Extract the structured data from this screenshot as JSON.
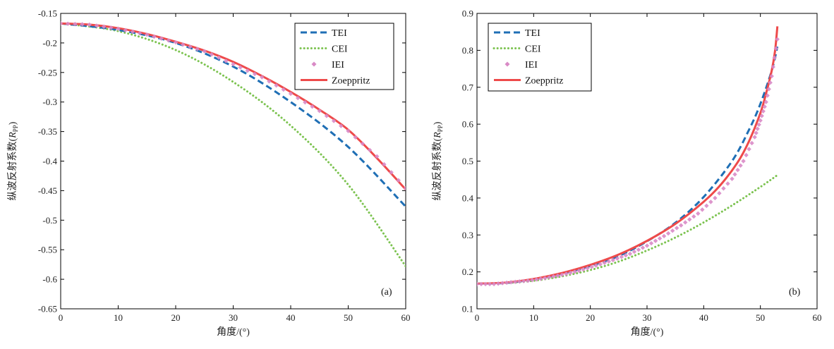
{
  "colors": {
    "TEI": "#1f6fb5",
    "CEI": "#7cc350",
    "IEI": "#d98ac6",
    "Zoeppritz": "#ee4a4a"
  },
  "chart_data": [
    {
      "type": "line",
      "panel": "(a)",
      "xlabel": "角度/(°)",
      "ylabel": "纵波反射系数(R_PP)",
      "ylabel_main": "纵波反射系数(",
      "ylabel_var": "R",
      "ylabel_sub": "PP",
      "ylabel_end": ")",
      "xlim": [
        0,
        60
      ],
      "ylim": [
        -0.65,
        -0.15
      ],
      "xticks": [
        0,
        10,
        20,
        30,
        40,
        50,
        60
      ],
      "yticks": [
        -0.65,
        -0.6,
        -0.55,
        -0.5,
        -0.45,
        -0.4,
        -0.35,
        -0.3,
        -0.25,
        -0.2,
        -0.15
      ],
      "xtick_labels": [
        "0",
        "10",
        "20",
        "30",
        "40",
        "50",
        "60"
      ],
      "ytick_labels": [
        "-0.65",
        "-0.6",
        "-0.55",
        "-0.5",
        "-0.45",
        "-0.4",
        "-0.35",
        "-0.3",
        "-0.25",
        "-0.2",
        "-0.15"
      ],
      "legend": [
        "TEI",
        "CEI",
        "IEI",
        "Zoeppritz"
      ],
      "legend_position": "top-right",
      "series": [
        {
          "name": "TEI",
          "style": "dashed",
          "x": [
            0,
            10,
            20,
            30,
            40,
            50,
            60
          ],
          "y": [
            -0.167,
            -0.178,
            -0.2,
            -0.24,
            -0.3,
            -0.376,
            -0.477
          ]
        },
        {
          "name": "CEI",
          "style": "dotted",
          "x": [
            0,
            10,
            20,
            30,
            40,
            50,
            60
          ],
          "y": [
            -0.167,
            -0.18,
            -0.212,
            -0.266,
            -0.34,
            -0.44,
            -0.578
          ]
        },
        {
          "name": "IEI",
          "style": "markers",
          "x": [
            0,
            5,
            10,
            15,
            20,
            25,
            30,
            35,
            40,
            45,
            50,
            55,
            60
          ],
          "y": [
            -0.167,
            -0.169,
            -0.176,
            -0.186,
            -0.199,
            -0.214,
            -0.236,
            -0.258,
            -0.286,
            -0.315,
            -0.349,
            -0.392,
            -0.446
          ]
        },
        {
          "name": "Zoeppritz",
          "style": "solid",
          "x": [
            0,
            5,
            10,
            15,
            20,
            25,
            30,
            35,
            40,
            45,
            50,
            55,
            60
          ],
          "y": [
            -0.167,
            -0.169,
            -0.175,
            -0.185,
            -0.198,
            -0.213,
            -0.232,
            -0.256,
            -0.283,
            -0.313,
            -0.347,
            -0.395,
            -0.448
          ]
        }
      ]
    },
    {
      "type": "line",
      "panel": "(b)",
      "xlabel": "角度/(°)",
      "ylabel": "纵波反射系数(R_PP)",
      "ylabel_main": "纵波反射系数(",
      "ylabel_var": "R",
      "ylabel_sub": "PP",
      "ylabel_end": ")",
      "xlim": [
        0,
        60
      ],
      "ylim": [
        0.1,
        0.9
      ],
      "xticks": [
        0,
        10,
        20,
        30,
        40,
        50,
        60
      ],
      "yticks": [
        0.1,
        0.2,
        0.3,
        0.4,
        0.5,
        0.6,
        0.7,
        0.8,
        0.9
      ],
      "xtick_labels": [
        "0",
        "10",
        "20",
        "30",
        "40",
        "50",
        "60"
      ],
      "ytick_labels": [
        "0.1",
        "0.2",
        "0.3",
        "0.4",
        "0.5",
        "0.6",
        "0.7",
        "0.8",
        "0.9"
      ],
      "legend": [
        "TEI",
        "CEI",
        "IEI",
        "Zoeppritz"
      ],
      "legend_position": "top-left",
      "series": [
        {
          "name": "TEI",
          "style": "dashed",
          "x": [
            0,
            5,
            10,
            15,
            20,
            25,
            30,
            35,
            40,
            45,
            48,
            50,
            52,
            53
          ],
          "y": [
            0.168,
            0.17,
            0.18,
            0.195,
            0.216,
            0.243,
            0.283,
            0.333,
            0.403,
            0.5,
            0.585,
            0.655,
            0.745,
            0.81
          ]
        },
        {
          "name": "CEI",
          "style": "dotted",
          "x": [
            0,
            5,
            10,
            15,
            20,
            25,
            30,
            35,
            40,
            45,
            50,
            53
          ],
          "y": [
            0.168,
            0.17,
            0.176,
            0.188,
            0.205,
            0.228,
            0.258,
            0.293,
            0.334,
            0.38,
            0.43,
            0.462
          ]
        },
        {
          "name": "IEI",
          "style": "markers",
          "x": [
            0,
            3,
            6,
            9,
            12,
            15,
            18,
            21,
            24,
            27,
            30,
            33,
            36,
            39,
            42,
            45,
            47,
            49,
            50,
            51,
            52,
            53
          ],
          "y": [
            0.167,
            0.167,
            0.172,
            0.176,
            0.183,
            0.192,
            0.203,
            0.217,
            0.232,
            0.249,
            0.271,
            0.297,
            0.326,
            0.358,
            0.4,
            0.452,
            0.5,
            0.565,
            0.61,
            0.66,
            0.73,
            0.83
          ]
        },
        {
          "name": "Zoeppritz",
          "style": "solid",
          "x": [
            0,
            5,
            10,
            15,
            20,
            25,
            30,
            35,
            40,
            43,
            46,
            48,
            50,
            51,
            52,
            52.6,
            53
          ],
          "y": [
            0.168,
            0.171,
            0.181,
            0.197,
            0.219,
            0.247,
            0.284,
            0.33,
            0.39,
            0.436,
            0.497,
            0.554,
            0.63,
            0.683,
            0.745,
            0.8,
            0.865
          ]
        }
      ]
    }
  ]
}
